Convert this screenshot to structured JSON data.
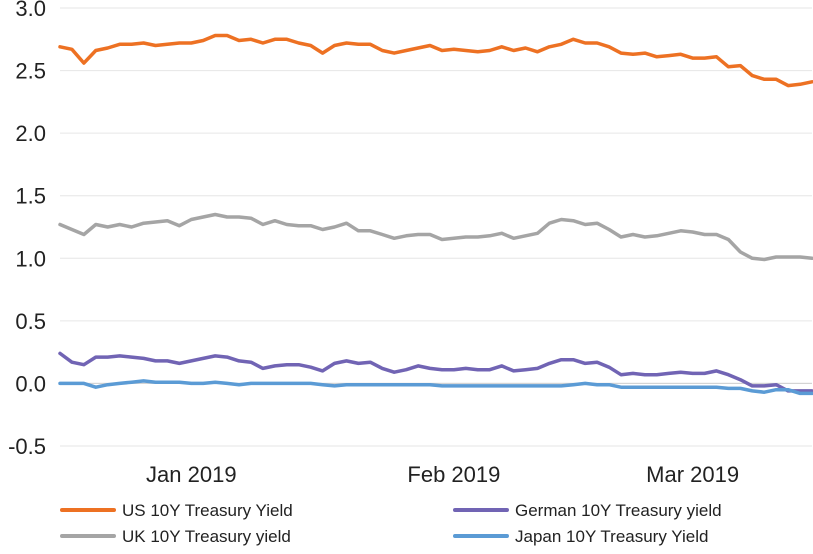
{
  "chart_data": {
    "type": "line",
    "title": "",
    "xlabel": "",
    "ylabel": "",
    "ylim": [
      -0.5,
      3.0
    ],
    "yticks": [
      3.0,
      2.5,
      2.0,
      1.5,
      1.0,
      0.5,
      0.0,
      -0.5
    ],
    "ytick_labels": [
      "3.0",
      "2.5",
      "2.0",
      "1.5",
      "1.0",
      "0.5",
      "0.0",
      "-0.5"
    ],
    "x_range": [
      0,
      63
    ],
    "xticks": [
      {
        "label": "Jan 2019",
        "x": 11
      },
      {
        "label": "Feb 2019",
        "x": 33
      },
      {
        "label": "Mar 2019",
        "x": 53
      }
    ],
    "grid": true,
    "zero_line": true,
    "legend_position": "bottom",
    "series": [
      {
        "name": "US 10Y Treasury Yield",
        "color": "#ED7123",
        "values": [
          2.69,
          2.67,
          2.56,
          2.66,
          2.68,
          2.71,
          2.71,
          2.72,
          2.7,
          2.71,
          2.72,
          2.72,
          2.74,
          2.78,
          2.78,
          2.74,
          2.75,
          2.72,
          2.75,
          2.75,
          2.72,
          2.7,
          2.64,
          2.7,
          2.72,
          2.71,
          2.71,
          2.66,
          2.64,
          2.66,
          2.68,
          2.7,
          2.66,
          2.67,
          2.66,
          2.65,
          2.66,
          2.69,
          2.66,
          2.68,
          2.65,
          2.69,
          2.71,
          2.75,
          2.72,
          2.72,
          2.69,
          2.64,
          2.63,
          2.64,
          2.61,
          2.62,
          2.63,
          2.6,
          2.6,
          2.61,
          2.53,
          2.54,
          2.46,
          2.43,
          2.43,
          2.38,
          2.39,
          2.41
        ]
      },
      {
        "name": "UK 10Y Treasury yield",
        "color": "#A5A5A5",
        "values": [
          1.27,
          1.23,
          1.19,
          1.27,
          1.25,
          1.27,
          1.25,
          1.28,
          1.29,
          1.3,
          1.26,
          1.31,
          1.33,
          1.35,
          1.33,
          1.33,
          1.32,
          1.27,
          1.3,
          1.27,
          1.26,
          1.26,
          1.23,
          1.25,
          1.28,
          1.22,
          1.22,
          1.19,
          1.16,
          1.18,
          1.19,
          1.19,
          1.15,
          1.16,
          1.17,
          1.17,
          1.18,
          1.2,
          1.16,
          1.18,
          1.2,
          1.28,
          1.31,
          1.3,
          1.27,
          1.28,
          1.23,
          1.17,
          1.19,
          1.17,
          1.18,
          1.2,
          1.22,
          1.21,
          1.19,
          1.19,
          1.15,
          1.05,
          1.0,
          0.99,
          1.01,
          1.01,
          1.01,
          1.0
        ]
      },
      {
        "name": "German 10Y Treasury yield",
        "color": "#7164B4",
        "values": [
          0.24,
          0.17,
          0.15,
          0.21,
          0.21,
          0.22,
          0.21,
          0.2,
          0.18,
          0.18,
          0.16,
          0.18,
          0.2,
          0.22,
          0.21,
          0.18,
          0.17,
          0.12,
          0.14,
          0.15,
          0.15,
          0.13,
          0.1,
          0.16,
          0.18,
          0.16,
          0.17,
          0.12,
          0.09,
          0.11,
          0.14,
          0.12,
          0.11,
          0.11,
          0.12,
          0.11,
          0.11,
          0.14,
          0.1,
          0.11,
          0.12,
          0.16,
          0.19,
          0.19,
          0.16,
          0.17,
          0.13,
          0.07,
          0.08,
          0.07,
          0.07,
          0.08,
          0.09,
          0.08,
          0.08,
          0.1,
          0.07,
          0.03,
          -0.02,
          -0.02,
          -0.01,
          -0.06,
          -0.06,
          -0.06
        ]
      },
      {
        "name": "Japan 10Y Treasury Yield",
        "color": "#5B9BD5",
        "values": [
          0.0,
          0.0,
          0.0,
          -0.03,
          -0.01,
          0.0,
          0.01,
          0.02,
          0.01,
          0.01,
          0.01,
          0.0,
          0.0,
          0.01,
          0.0,
          -0.01,
          0.0,
          0.0,
          0.0,
          0.0,
          0.0,
          0.0,
          -0.01,
          -0.02,
          -0.01,
          -0.01,
          -0.01,
          -0.01,
          -0.01,
          -0.01,
          -0.01,
          -0.01,
          -0.02,
          -0.02,
          -0.02,
          -0.02,
          -0.02,
          -0.02,
          -0.02,
          -0.02,
          -0.02,
          -0.02,
          -0.02,
          -0.01,
          0.0,
          -0.01,
          -0.01,
          -0.03,
          -0.03,
          -0.03,
          -0.03,
          -0.03,
          -0.03,
          -0.03,
          -0.03,
          -0.03,
          -0.04,
          -0.04,
          -0.06,
          -0.07,
          -0.05,
          -0.05,
          -0.08,
          -0.08
        ]
      }
    ]
  }
}
